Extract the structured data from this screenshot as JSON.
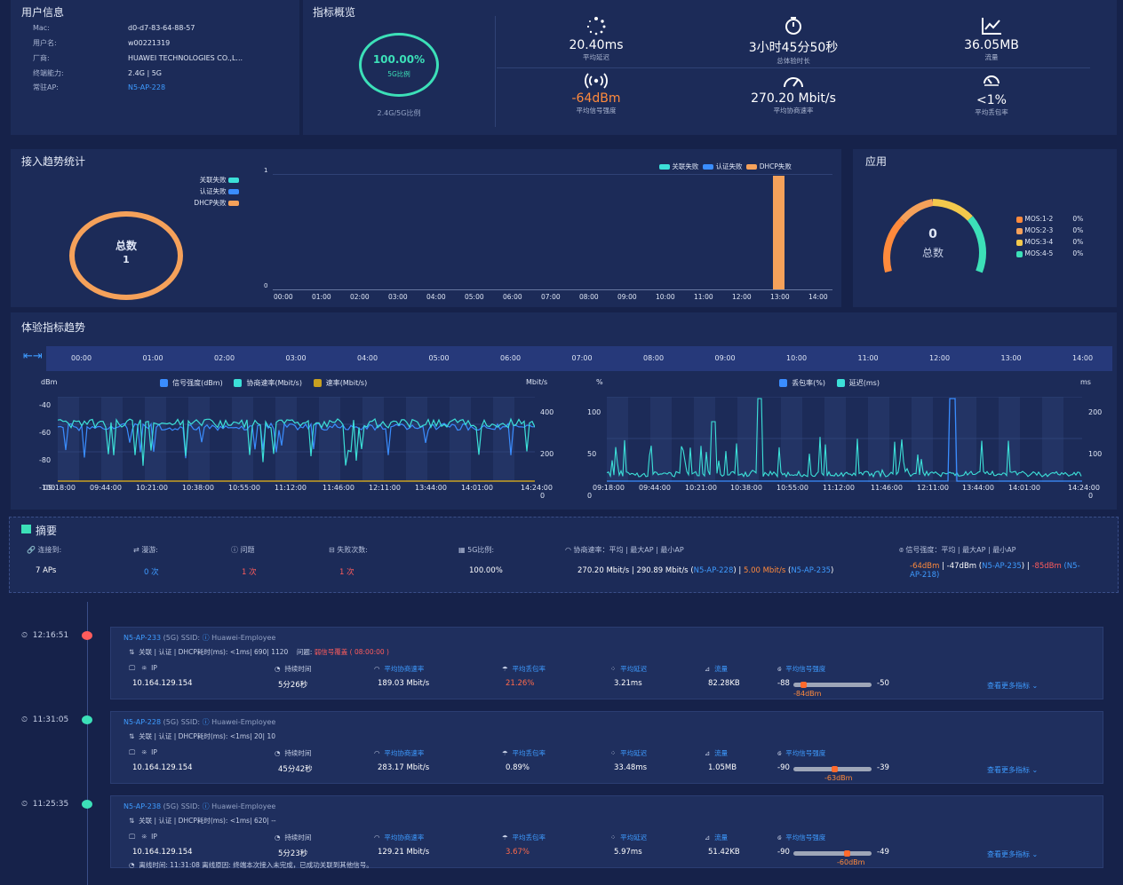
{
  "user_info": {
    "title": "用户信息",
    "rows": [
      {
        "k": "Mac:",
        "v": "d0-d7-83-64-88-57"
      },
      {
        "k": "用户名:",
        "v": "w00221319"
      },
      {
        "k": "厂商:",
        "v": "HUAWEI TECHNOLOGIES CO.,L..."
      },
      {
        "k": "终端能力:",
        "v": "2.4G | 5G"
      },
      {
        "k": "常驻AP:",
        "v": "N5-AP-228"
      }
    ]
  },
  "overview": {
    "title": "指标概览",
    "ratio_value": "100.00%",
    "ratio_label": "5G比例",
    "ratio_caption": "2.4G/5G比例",
    "ratio_percent": 100,
    "metrics": [
      {
        "value": "20.40ms",
        "label": "平均延迟",
        "icon": "spinner-icon"
      },
      {
        "value": "3小时45分50秒",
        "label": "总体验时长",
        "icon": "timer-icon"
      },
      {
        "value": "36.05MB",
        "label": "流量",
        "icon": "chart-icon"
      },
      {
        "value": "-64dBm",
        "label": "平均信号强度",
        "icon": "signal-icon"
      },
      {
        "value": "270.20 Mbit/s",
        "label": "平均协商速率",
        "icon": "gauge-icon"
      },
      {
        "value": "<1%",
        "label": "平均丢包率",
        "icon": "loss-icon"
      }
    ]
  },
  "access": {
    "title": "接入趋势统计",
    "legend": [
      "关联失败",
      "认证失败",
      "DHCP失败"
    ],
    "legend_colors": [
      "#3ce0d8",
      "#3a8dff",
      "#f5a15a"
    ],
    "donut_label": "总数",
    "donut_value": "1",
    "y_ticks": [
      "1",
      "0"
    ],
    "x_ticks": [
      "00:00",
      "01:00",
      "02:00",
      "03:00",
      "04:00",
      "05:00",
      "06:00",
      "07:00",
      "08:00",
      "09:00",
      "10:00",
      "11:00",
      "12:00",
      "13:00",
      "14:00"
    ]
  },
  "app": {
    "title": "应用",
    "gauge_value": "0",
    "gauge_label": "总数",
    "legend": [
      {
        "name": "MOS:1-2",
        "pct": "0%",
        "color": "#ff8a3c"
      },
      {
        "name": "MOS:2-3",
        "pct": "0%",
        "color": "#f5a15a"
      },
      {
        "name": "MOS:3-4",
        "pct": "0%",
        "color": "#f3c94c"
      },
      {
        "name": "MOS:4-5",
        "pct": "0%",
        "color": "#3ce0b8"
      }
    ]
  },
  "experience": {
    "title": "体验指标趋势",
    "timeline_ticks": [
      "00:00",
      "01:00",
      "02:00",
      "03:00",
      "04:00",
      "05:00",
      "06:00",
      "07:00",
      "08:00",
      "09:00",
      "10:00",
      "11:00",
      "12:00",
      "13:00",
      "14:00"
    ],
    "left_chart": {
      "y_left_unit": "dBm",
      "y_right_unit": "Mbit/s",
      "legend": [
        "信号强度(dBm)",
        "协商速率(Mbit/s)",
        "速率(Mbit/s)"
      ],
      "y_left_ticks": [
        "-40",
        "-60",
        "-80",
        "-100"
      ],
      "y_right_ticks": [
        "400",
        "200",
        "0"
      ],
      "x_ticks": [
        "09:18:00",
        "09:44:00",
        "10:21:00",
        "10:38:00",
        "10:55:00",
        "11:12:00",
        "11:46:00",
        "12:11:00",
        "13:44:00",
        "14:01:00",
        "14:24:00"
      ]
    },
    "right_chart": {
      "y_left_unit": "%",
      "y_right_unit": "ms",
      "legend": [
        "丢包率(%)",
        "延迟(ms)"
      ],
      "y_left_ticks": [
        "100",
        "50",
        "0"
      ],
      "y_right_ticks": [
        "200",
        "100",
        "0"
      ],
      "x_ticks": [
        "09:18:00",
        "09:44:00",
        "10:21:00",
        "10:38:00",
        "10:55:00",
        "11:12:00",
        "11:46:00",
        "12:11:00",
        "13:44:00",
        "14:01:00",
        "14:24:00"
      ]
    }
  },
  "summary": {
    "title": "摘要",
    "headers": [
      "连接到:",
      "漫游:",
      "问题",
      "失败次数:",
      "5G比例:",
      "协商速率：平均 | 最大AP | 最小AP",
      "信号强度：平均 | 最大AP | 最小AP"
    ],
    "aps": "7 APs",
    "roam": "0 次",
    "issues": "1 次",
    "failures": "1 次",
    "ratio": "100.00%",
    "rate_avg": "270.20 Mbit/s",
    "rate_max": "290.89 Mbit/s",
    "rate_max_ap": "N5-AP-228",
    "rate_min": "5.00 Mbit/s",
    "rate_min_ap": "N5-AP-235",
    "sig_avg": "-64dBm",
    "sig_max": "-47dBm",
    "sig_max_ap": "N5-AP-235",
    "sig_min": "-85dBm",
    "sig_min_ap_1": "(N5-",
    "sig_min_ap_2": "AP-218)"
  },
  "sessions": [
    {
      "time": "12:16:51",
      "dot_color": "#ff5c5c",
      "ap": "N5-AP-233",
      "band": "(5G)",
      "ssid_label": "SSID:",
      "ssid": "Huawei-Employee",
      "flow": "关联 | 认证 | DHCP耗时(ms): <1ms| 690| 1120",
      "issue_label": "问题:",
      "issue": "弱信号覆盖 ( 08:00:00 )",
      "hdrs": [
        "IP",
        "持续时间",
        "平均协商速率",
        "平均丢包率",
        "平均延迟",
        "流量",
        "平均信号强度"
      ],
      "ip": "10.164.129.154",
      "duration": "5分26秒",
      "rate": "189.03 Mbit/s",
      "loss": "21.26%",
      "loss_alert": true,
      "latency": "3.21ms",
      "traffic": "82.28KB",
      "sig_min": "-88",
      "sig_max": "-50",
      "sig_avg": "-84dBm",
      "sig_pos": 0.1,
      "more": "查看更多指标",
      "extra": ""
    },
    {
      "time": "11:31:05",
      "dot_color": "#3ce0b8",
      "ap": "N5-AP-228",
      "band": "(5G)",
      "ssid_label": "SSID:",
      "ssid": "Huawei-Employee",
      "flow": "关联 | 认证 | DHCP耗时(ms): <1ms| 20| 10",
      "issue_label": "",
      "issue": "",
      "hdrs": [
        "IP",
        "持续时间",
        "平均协商速率",
        "平均丢包率",
        "平均延迟",
        "流量",
        "平均信号强度"
      ],
      "ip": "10.164.129.154",
      "duration": "45分42秒",
      "rate": "283.17 Mbit/s",
      "loss": "0.89%",
      "loss_alert": false,
      "latency": "33.48ms",
      "traffic": "1.05MB",
      "sig_min": "-90",
      "sig_max": "-39",
      "sig_avg": "-63dBm",
      "sig_pos": 0.53,
      "more": "查看更多指标",
      "extra": ""
    },
    {
      "time": "11:25:35",
      "dot_color": "#3ce0b8",
      "ap": "N5-AP-238",
      "band": "(5G)",
      "ssid_label": "SSID:",
      "ssid": "Huawei-Employee",
      "flow": "关联 | 认证 | DHCP耗时(ms): <1ms| 620| --",
      "issue_label": "",
      "issue": "",
      "hdrs": [
        "IP",
        "持续时间",
        "平均协商速率",
        "平均丢包率",
        "平均延迟",
        "流量",
        "平均信号强度"
      ],
      "ip": "10.164.129.154",
      "duration": "5分23秒",
      "rate": "129.21 Mbit/s",
      "loss": "3.67%",
      "loss_alert": true,
      "latency": "5.97ms",
      "traffic": "51.42KB",
      "sig_min": "-90",
      "sig_max": "-49",
      "sig_avg": "-60dBm",
      "sig_pos": 0.7,
      "more": "查看更多指标",
      "extra": "离线时间: 11:31:08    离线原因: 终端本次接入未完成，已成功关联到其他信号。"
    }
  ]
}
